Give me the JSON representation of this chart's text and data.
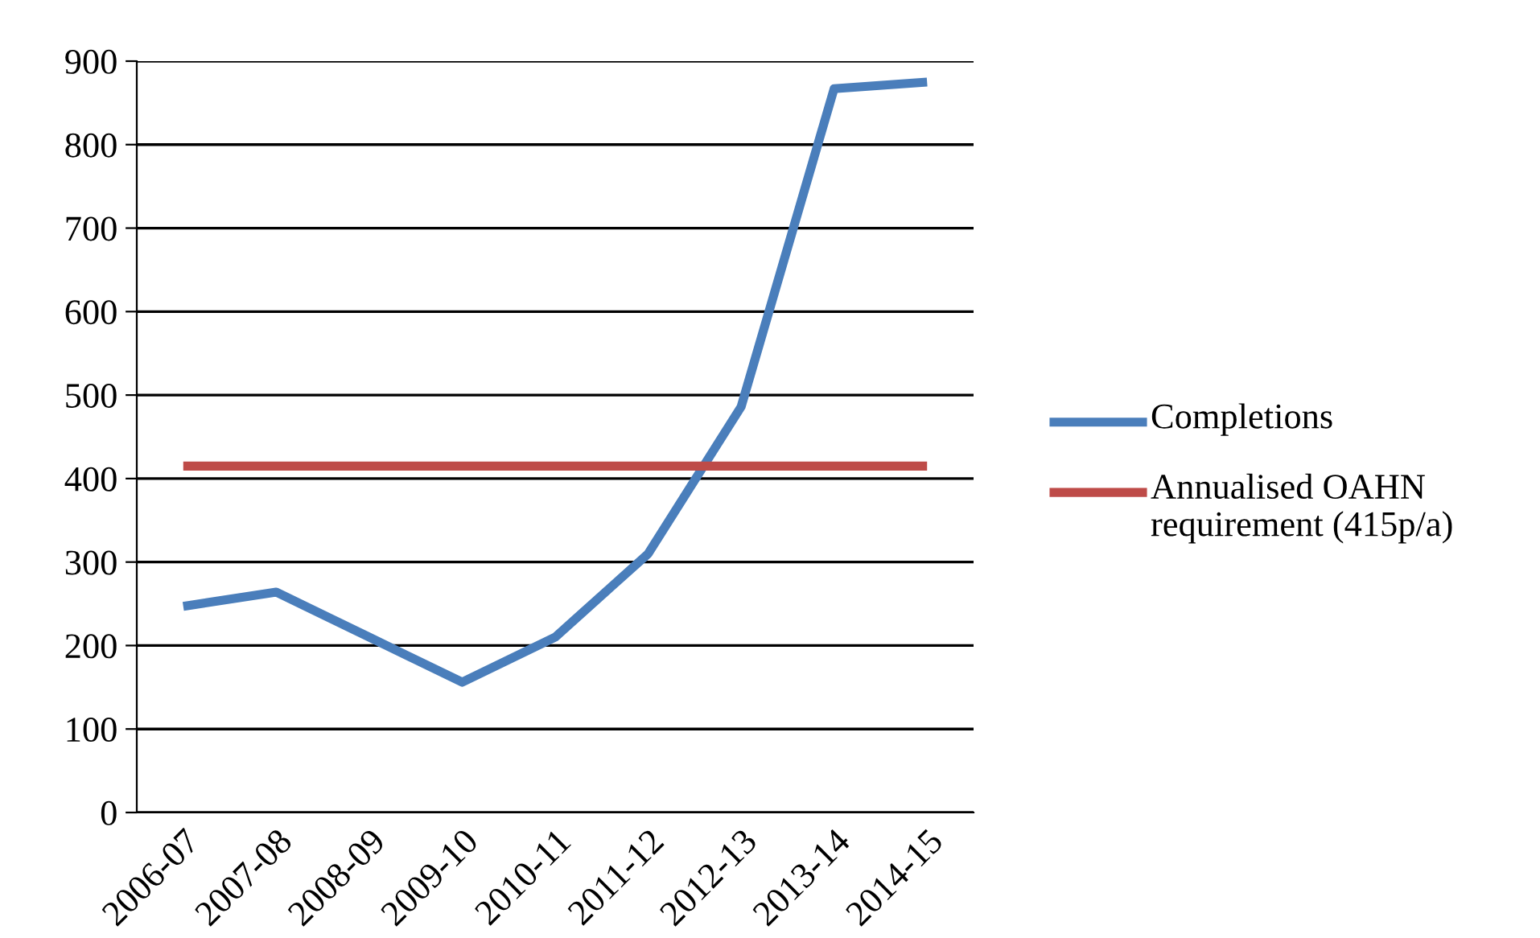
{
  "chart_data": {
    "type": "line",
    "categories": [
      "2006-07",
      "2007-08",
      "2008-09",
      "2009-10",
      "2010-11",
      "2011-12",
      "2012-13",
      "2013-14",
      "2014-15"
    ],
    "series": [
      {
        "name": "Completions",
        "color": "#4a7ebb",
        "values": [
          247,
          264,
          210,
          156,
          210,
          310,
          486,
          867,
          875
        ]
      },
      {
        "name": "Annualised OAHN requirement (415p/a)",
        "color": "#be4b48",
        "values": [
          415,
          415,
          415,
          415,
          415,
          415,
          415,
          415,
          415
        ]
      }
    ],
    "ylim": [
      0,
      900
    ],
    "yticks": [
      0,
      100,
      200,
      300,
      400,
      500,
      600,
      700,
      800,
      900
    ],
    "grid": "y",
    "legend": "right",
    "marker": "none",
    "line_style": "solid"
  }
}
